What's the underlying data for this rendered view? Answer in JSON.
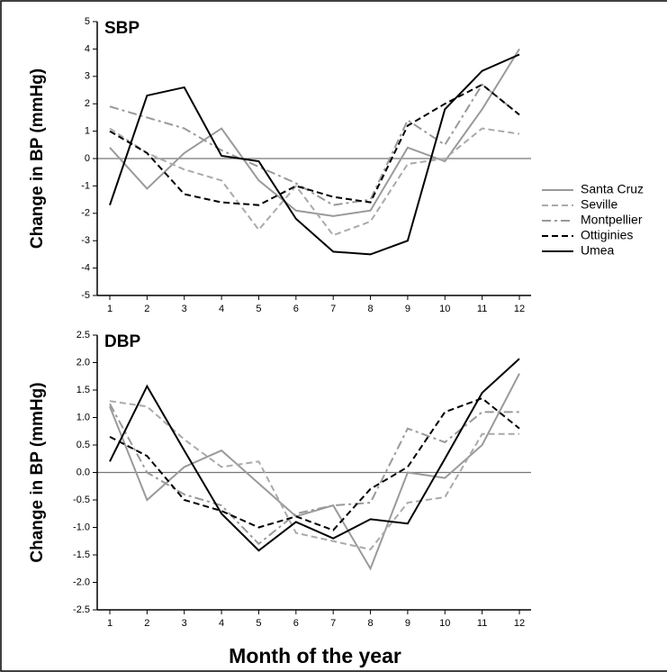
{
  "chart_data": [
    {
      "type": "line",
      "title": "SBP",
      "ylabel": "Change in BP (mmHg)",
      "categories": [
        "1",
        "2",
        "3",
        "4",
        "5",
        "6",
        "7",
        "8",
        "9",
        "10",
        "11",
        "12"
      ],
      "ylim": [
        -5,
        5
      ],
      "yticks": [
        -5,
        -4,
        -3,
        -2,
        -1,
        0,
        1,
        2,
        3,
        4,
        5
      ],
      "zero_line": true,
      "series": [
        {
          "name": "Santa Cruz",
          "color": "#9a9a9a",
          "dash": "solid",
          "values": [
            0.4,
            -1.1,
            0.2,
            1.1,
            -0.8,
            -1.9,
            -2.1,
            -1.9,
            0.4,
            -0.1,
            1.8,
            4.0
          ]
        },
        {
          "name": "Seville",
          "color": "#aaaaaa",
          "dash": "dashed",
          "values": [
            1.1,
            0.2,
            -0.4,
            -0.8,
            -2.6,
            -1.0,
            -2.8,
            -2.3,
            -0.2,
            0.0,
            1.1,
            0.9
          ]
        },
        {
          "name": "Montpellier",
          "color": "#999999",
          "dash": "dashdot",
          "values": [
            1.9,
            1.5,
            1.1,
            0.3,
            -0.3,
            -0.9,
            -1.7,
            -1.5,
            1.4,
            0.5,
            2.7,
            1.6
          ]
        },
        {
          "name": "Ottiginies",
          "color": "#000000",
          "dash": "dashed",
          "values": [
            1.0,
            0.2,
            -1.3,
            -1.6,
            -1.7,
            -1.0,
            -1.4,
            -1.6,
            1.2,
            2.0,
            2.7,
            1.6
          ]
        },
        {
          "name": "Umea",
          "color": "#000000",
          "dash": "solid",
          "values": [
            -1.7,
            2.3,
            2.6,
            0.1,
            -0.1,
            -2.2,
            -3.4,
            -3.5,
            -3.0,
            1.8,
            3.2,
            3.8
          ]
        }
      ]
    },
    {
      "type": "line",
      "title": "DBP",
      "ylabel": "Change in BP (mmHg)",
      "xlabel": "Month of the year",
      "categories": [
        "1",
        "2",
        "3",
        "4",
        "5",
        "6",
        "7",
        "8",
        "9",
        "10",
        "11",
        "12"
      ],
      "ylim": [
        -2.5,
        2.5
      ],
      "yticks": [
        -2.5,
        {
          "value": -2,
          "label": "-2.0"
        },
        -1.5,
        {
          "value": -1,
          "label": "-1.0"
        },
        -0.5,
        {
          "value": 0,
          "label": "0.0"
        },
        0.5,
        {
          "value": 1,
          "label": "1.0"
        },
        1.5,
        {
          "value": 2,
          "label": "2.0"
        },
        2.5
      ],
      "zero_line": true,
      "series": [
        {
          "color": "#9a9a9a",
          "dash": "solid",
          "values": [
            1.2,
            -0.5,
            0.1,
            0.4,
            -0.2,
            -0.8,
            -0.6,
            -1.75,
            0.0,
            -0.1,
            0.5,
            1.8
          ]
        },
        {
          "color": "#aaaaaa",
          "dash": "dashed",
          "values": [
            1.3,
            1.2,
            0.6,
            0.1,
            0.2,
            -1.1,
            -1.25,
            -1.4,
            -0.55,
            -0.45,
            0.7,
            0.7
          ]
        },
        {
          "color": "#999999",
          "dash": "dashdot",
          "values": [
            1.25,
            0.0,
            -0.4,
            -0.6,
            -1.3,
            -0.75,
            -0.6,
            -0.55,
            0.8,
            0.55,
            1.1,
            1.1
          ]
        },
        {
          "color": "#000000",
          "dash": "dashed",
          "values": [
            0.65,
            0.3,
            -0.5,
            -0.7,
            -1.0,
            -0.8,
            -1.05,
            -0.3,
            0.1,
            1.1,
            1.35,
            0.8
          ]
        },
        {
          "color": "#000000",
          "dash": "solid",
          "values": [
            0.2,
            1.57,
            0.4,
            -0.75,
            -1.42,
            -0.9,
            -1.2,
            -0.85,
            -0.93,
            0.25,
            1.45,
            2.07
          ]
        }
      ]
    }
  ]
}
